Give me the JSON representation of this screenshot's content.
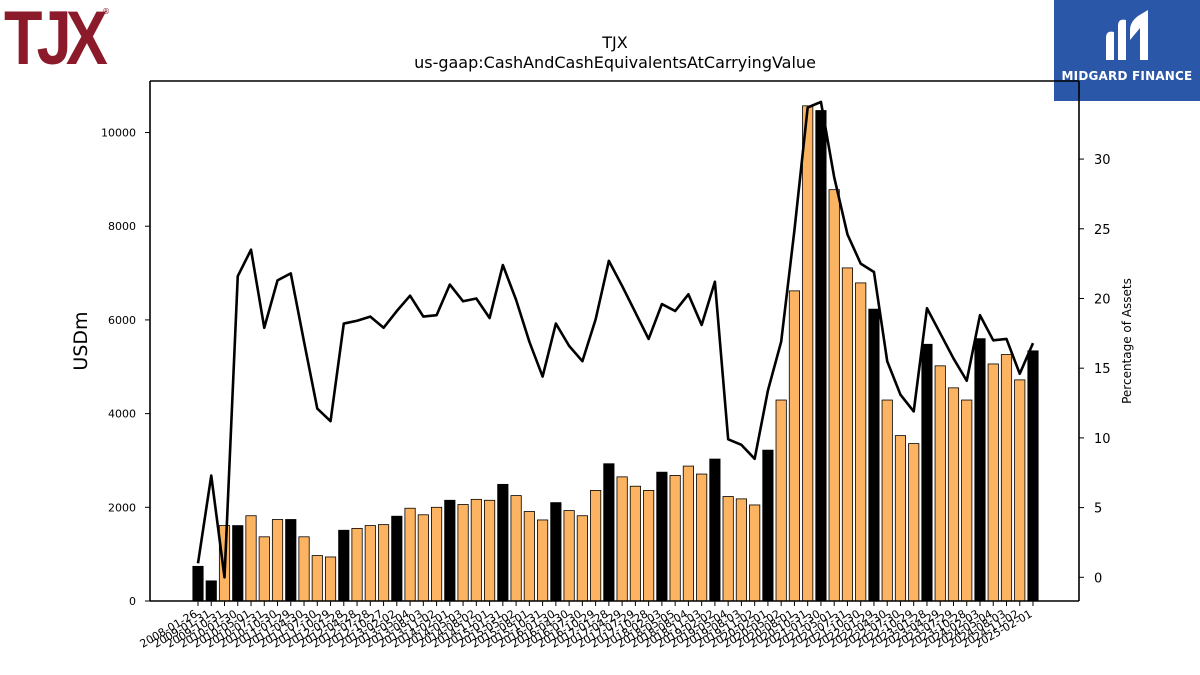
{
  "branding": {
    "left_logo_text": "TJX",
    "left_logo_mark": "®",
    "right_logo_text": "MIDGARD FINANCE",
    "left_logo_color": "#8b1a2b",
    "right_logo_bg": "#2b57a8"
  },
  "chart_data": {
    "type": "bar",
    "title": "TJX",
    "subtitle": "us-gaap:CashAndCashEquivalentsAtCarryingValue",
    "ylabel": "USDm",
    "ylabel_right": "Percentage of Assets",
    "ylim": [
      0,
      11100
    ],
    "ylim_right": [
      -1.7,
      35.6
    ],
    "yticks": [
      0,
      2000,
      4000,
      6000,
      8000,
      10000
    ],
    "yticks_right": [
      0,
      5,
      10,
      15,
      20,
      25,
      30
    ],
    "grid": false,
    "bar_colors": {
      "annual": "#000000",
      "quarter": "#fdb462"
    },
    "line_color": "#000000",
    "categories": [
      "2008-01-26",
      "2009-01-31",
      "2009-10-31",
      "2010-01-30",
      "2010-05-01",
      "2010-07-31",
      "2010-10-30",
      "2011-01-29",
      "2011-04-30",
      "2011-07-30",
      "2011-10-29",
      "2012-01-28",
      "2012-04-28",
      "2012-07-28",
      "2012-10-27",
      "2013-02-02",
      "2013-05-04",
      "2013-08-03",
      "2013-11-02",
      "2014-02-01",
      "2014-05-03",
      "2014-08-02",
      "2014-11-01",
      "2015-01-31",
      "2015-05-02",
      "2015-08-01",
      "2015-10-31",
      "2016-01-30",
      "2016-04-30",
      "2016-07-30",
      "2016-10-29",
      "2017-01-28",
      "2017-04-29",
      "2017-07-29",
      "2017-10-28",
      "2018-02-03",
      "2018-05-05",
      "2018-08-04",
      "2018-11-03",
      "2019-02-02",
      "2019-05-04",
      "2019-08-03",
      "2019-11-02",
      "2020-02-01",
      "2020-05-02",
      "2020-08-01",
      "2020-10-31",
      "2021-01-30",
      "2021-05-01",
      "2021-07-31",
      "2021-10-30",
      "2022-01-29",
      "2022-04-30",
      "2022-07-30",
      "2022-10-29",
      "2023-01-28",
      "2023-04-29",
      "2023-07-29",
      "2023-10-28",
      "2024-02-03",
      "2024-05-04",
      "2024-08-03",
      "2024-11-02",
      "2025-02-01"
    ],
    "series": [
      {
        "values": [
          740,
          430,
          1610,
          1610,
          1820,
          1370,
          1740,
          1740,
          1370,
          970,
          940,
          1510,
          1550,
          1610,
          1630,
          1810,
          1980,
          1840,
          2000,
          2150,
          2060,
          2170,
          2150,
          2490,
          2250,
          1910,
          1730,
          2100,
          1930,
          1820,
          2360,
          2930,
          2650,
          2450,
          2360,
          2750,
          2680,
          2880,
          2710,
          3030,
          2230,
          2180,
          2050,
          3220,
          4290,
          6620,
          10570,
          10470,
          8780,
          7110,
          6790,
          6230,
          4290,
          3530,
          3360,
          5480,
          5020,
          4550,
          4290,
          5600,
          5060,
          5260,
          4720,
          5340
        ]
      },
      {
        "values": [
          1.0,
          7.3,
          0.0,
          21.6,
          23.5,
          17.9,
          21.3,
          21.8,
          16.9,
          12.1,
          11.2,
          18.2,
          18.4,
          18.7,
          17.9,
          19.1,
          20.2,
          18.7,
          18.8,
          21.0,
          19.8,
          20.0,
          18.6,
          22.4,
          19.9,
          16.9,
          14.4,
          18.2,
          16.6,
          15.5,
          18.5,
          22.7,
          20.9,
          19.0,
          17.1,
          19.6,
          19.1,
          20.3,
          18.1,
          21.2,
          9.9,
          9.5,
          8.5,
          13.4,
          16.9,
          24.9,
          33.7,
          34.1,
          28.7,
          24.6,
          22.5,
          21.9,
          15.5,
          13.1,
          11.9,
          19.3,
          17.5,
          15.7,
          14.1,
          18.8,
          17.0,
          17.1,
          14.6,
          16.8
        ]
      }
    ]
  }
}
